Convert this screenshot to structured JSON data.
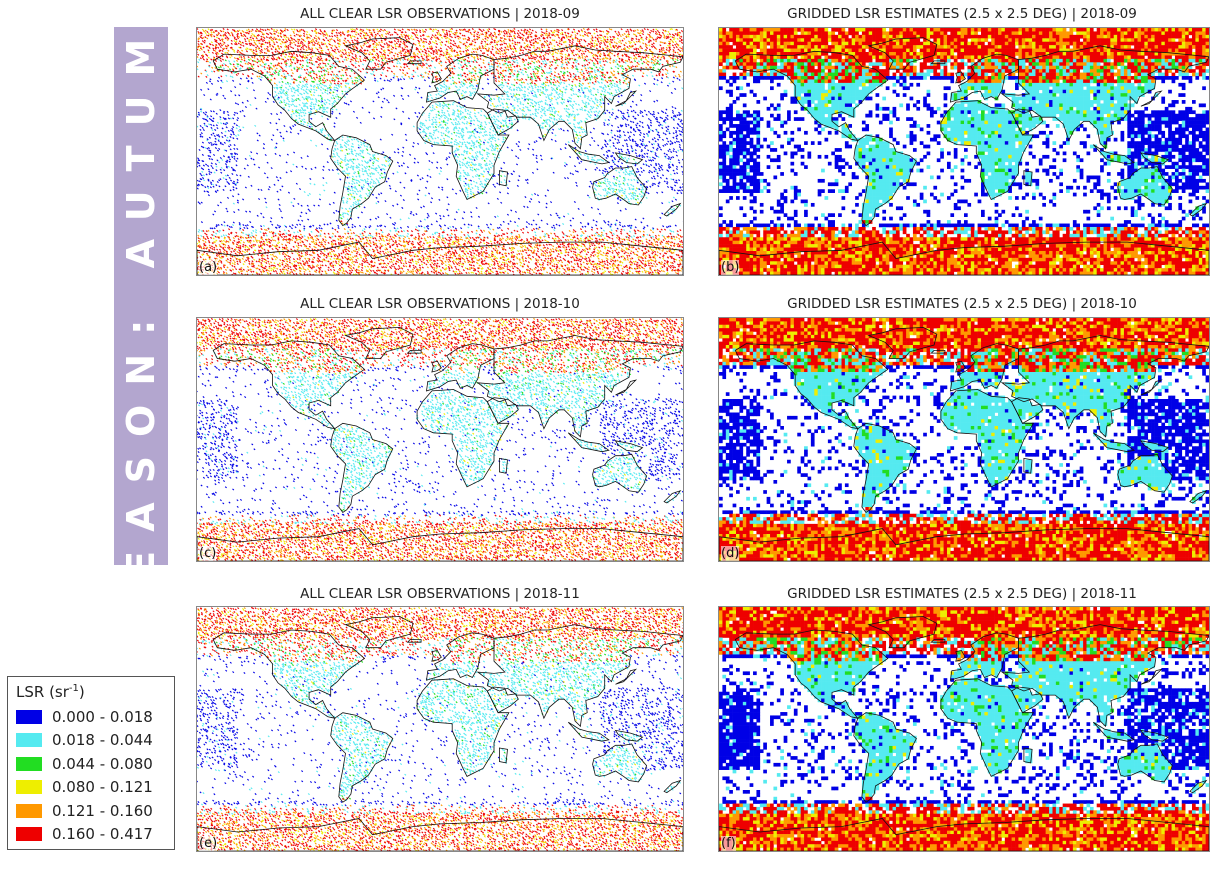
{
  "season_label": "SEASON: AUTUMN",
  "panels": [
    {
      "id": "a",
      "title": "ALL CLEAR LSR OBSERVATIONS | 2018-09",
      "letter": "(a)",
      "kind": "observations"
    },
    {
      "id": "b",
      "title": "GRIDDED LSR ESTIMATES (2.5 x 2.5 DEG) | 2018-09",
      "letter": "(b)",
      "kind": "gridded"
    },
    {
      "id": "c",
      "title": "ALL CLEAR LSR OBSERVATIONS | 2018-10",
      "letter": "(c)",
      "kind": "observations"
    },
    {
      "id": "d",
      "title": "GRIDDED LSR ESTIMATES (2.5 x 2.5 DEG) | 2018-10",
      "letter": "(d)",
      "kind": "gridded"
    },
    {
      "id": "e",
      "title": "ALL CLEAR LSR OBSERVATIONS | 2018-11",
      "letter": "(e)",
      "kind": "observations"
    },
    {
      "id": "f",
      "title": "GRIDDED LSR ESTIMATES (2.5 x 2.5 DEG) | 2018-11",
      "letter": "(f)",
      "kind": "gridded"
    }
  ],
  "legend": {
    "title_main": "LSR (sr",
    "title_sup": "-1",
    "title_end": ")",
    "items": [
      {
        "label": "0.000 - 0.018",
        "color": "#0000e6"
      },
      {
        "label": "0.018 - 0.044",
        "color": "#55eaf0"
      },
      {
        "label": "0.044 - 0.080",
        "color": "#22dd22"
      },
      {
        "label": "0.080 - 0.121",
        "color": "#eeee00"
      },
      {
        "label": "0.121 - 0.160",
        "color": "#ff9900"
      },
      {
        "label": "0.160 - 0.417",
        "color": "#ee0000"
      }
    ]
  }
}
